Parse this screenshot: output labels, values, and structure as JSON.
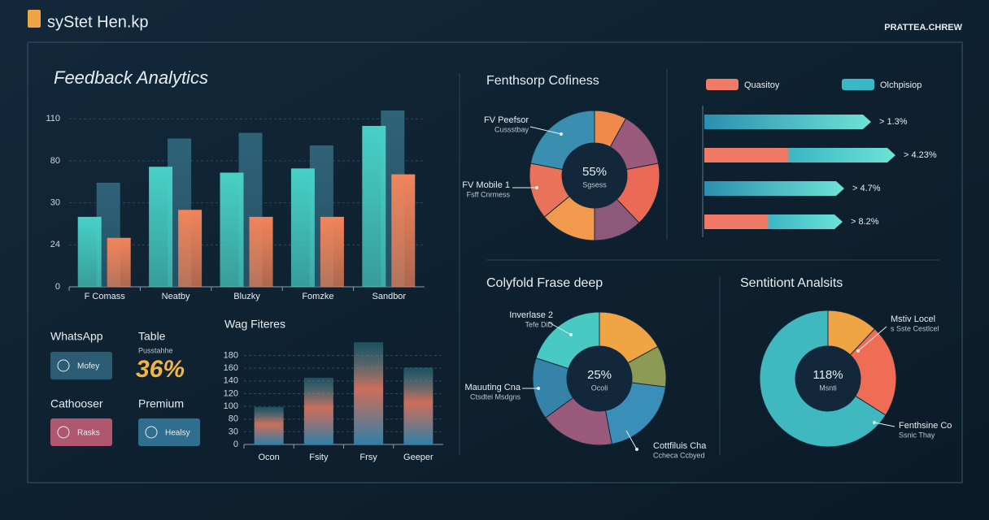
{
  "header": {
    "title": "syStet Hen.kp",
    "brand": "PRATTEA.CHREW"
  },
  "widgets": [
    {
      "title": "WhatsApp",
      "button": "Mofey"
    },
    {
      "title": "Table",
      "caption": "Pusstahhe",
      "kpi": "36%"
    },
    {
      "title": "Cathooser",
      "button": "Rasks"
    },
    {
      "title": "Premium",
      "button": "Healsy"
    }
  ],
  "progress_panel": {
    "legend": [
      {
        "name": "Quasitoy",
        "color": "#f07a66"
      },
      {
        "name": "Olchpisiop",
        "color": "#3ab7c4"
      }
    ],
    "items": [
      "> 1.3%",
      "> 4.23%",
      "> 4.7%",
      "> 8.2%"
    ]
  },
  "chart_data": [
    {
      "type": "bar",
      "title": "Feedback Analytics",
      "categories": [
        "F Comass",
        "Neatby",
        "Bluzky",
        "Fomzke",
        "Sandbor"
      ],
      "series": [
        {
          "color": "#48d1c6",
          "values": [
            28,
            73,
            66,
            71,
            105
          ]
        },
        {
          "color": "#f2845a",
          "values": [
            25,
            29,
            28,
            28,
            64
          ]
        },
        {
          "color": "#2f6378",
          "values": [
            54,
            96,
            100,
            91,
            116
          ]
        }
      ],
      "ylim": [
        0,
        116
      ],
      "yticks": [
        110,
        80,
        30,
        24,
        0
      ],
      "grid": true
    },
    {
      "type": "donut",
      "title": "Fenthsorp Cofiness",
      "center_label": "55%",
      "center_sublabel": "Sgsess",
      "values": [
        8,
        14,
        16,
        12,
        14,
        14,
        22
      ],
      "colors": [
        "#f08a4b",
        "#9a5a7c",
        "#ea6a55",
        "#8c5a78",
        "#f19a4e",
        "#e8735a",
        "#3a8fb0"
      ],
      "annotations": [
        [
          "FV Peefsor",
          "Cussstbay"
        ],
        [
          "FV Mobile 1",
          "Fsff Cnrmess"
        ]
      ]
    },
    {
      "type": "donut",
      "title": "Colyfold Frase deep",
      "center_label": "25%",
      "center_sublabel": "Ocoli",
      "values": [
        17,
        10,
        20,
        18,
        15,
        20
      ],
      "colors": [
        "#f0a545",
        "#8c9a55",
        "#3a8fb8",
        "#9a5a7c",
        "#3583a8",
        "#48c9c2"
      ],
      "annotations": [
        [
          "Inverlase 2",
          "Tefe DiD"
        ],
        [
          "Mauuting Cna",
          "Ctsdtei Msdgns"
        ],
        [
          "Cottfiluis Cha",
          "Ccheca Ccbyed"
        ]
      ]
    },
    {
      "type": "donut",
      "title": "Sentitiont Analsits",
      "center_label": "118%",
      "center_sublabel": "Msnti",
      "values": [
        12,
        22,
        66
      ],
      "colors": [
        "#f0a545",
        "#ef6c55",
        "#3fb8c0"
      ],
      "annotations": [
        [
          "Mstiv Locel",
          "s Sste Cestlcel"
        ],
        [
          "Fenthsine Co",
          "Ssnic Thay"
        ]
      ]
    },
    {
      "type": "bar",
      "title": "Wag Fiteres",
      "categories": [
        "Ocon",
        "Fsity",
        "Frsy",
        "Geeper"
      ],
      "series": [
        {
          "color": "#e0765e",
          "values": [
            99,
            145,
            201,
            161
          ]
        }
      ],
      "ylim": [
        0,
        205
      ],
      "yticks": [
        180,
        160,
        140,
        120,
        100,
        80,
        30,
        0
      ],
      "grid": true
    }
  ]
}
